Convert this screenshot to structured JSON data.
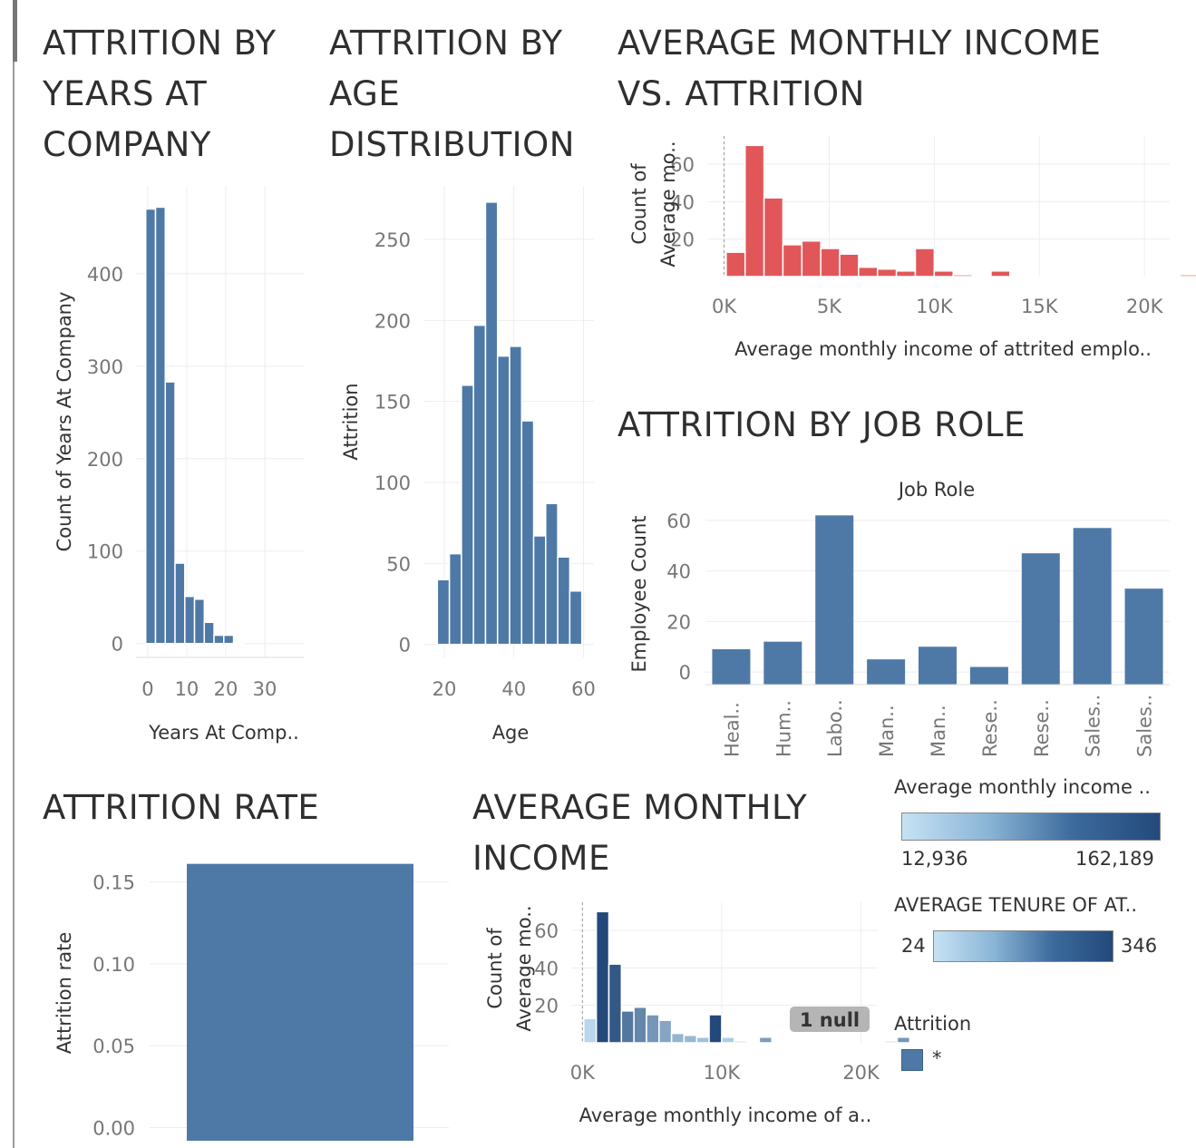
{
  "titles": {
    "years": [
      "ATTRITION BY",
      "YEARS AT",
      "COMPANY"
    ],
    "age": [
      "ATTRITION BY",
      "AGE",
      "DISTRIBUTION"
    ],
    "income_vs_attrition": [
      "AVERAGE MONTHLY INCOME",
      "VS. ATTRITION"
    ],
    "job_role": [
      "ATTRITION BY JOB ROLE"
    ],
    "rate": [
      "ATTRITION RATE"
    ],
    "avg_income": [
      "AVERAGE MONTHLY",
      "INCOME"
    ]
  },
  "legends": {
    "income": {
      "title": "Average monthly income ..",
      "min": "12,936",
      "max": "162,189"
    },
    "tenure": {
      "title": "AVERAGE TENURE OF AT..",
      "min": "24",
      "max": "346"
    },
    "attrition": {
      "title": "Attrition",
      "item": "*",
      "color": "#4e79a7"
    }
  },
  "colors": {
    "blue": "#4e79a7",
    "red": "#e15759",
    "grid": "#eeeeee"
  },
  "chart_data": [
    {
      "id": "years",
      "type": "bar",
      "title": "ATTRITION BY YEARS AT COMPANY",
      "xlabel": "Years At Comp..",
      "ylabel": "Count of Years At Company",
      "bin_width": 2.5,
      "x_start": -0.5,
      "values": [
        470,
        472,
        283,
        87,
        51,
        48,
        23,
        9,
        9,
        1
      ],
      "xticks": [
        0,
        10,
        20,
        30
      ],
      "xtick_labels": [
        "0",
        "10",
        "20",
        "30"
      ],
      "yticks": [
        0,
        100,
        200,
        300,
        400
      ],
      "ytick_labels": [
        "0",
        "100",
        "200",
        "300",
        "400"
      ],
      "ylim": [
        -15,
        495
      ],
      "xlim": [
        -3,
        40
      ]
    },
    {
      "id": "age",
      "type": "bar",
      "title": "ATTRITION BY AGE DISTRIBUTION",
      "xlabel": "Age",
      "ylabel": "Attrition",
      "bin_width": 3.46,
      "x_start": 18,
      "values": [
        40,
        56,
        160,
        197,
        273,
        178,
        184,
        138,
        67,
        87,
        54,
        33
      ],
      "xticks": [
        20,
        40,
        60
      ],
      "xtick_labels": [
        "20",
        "40",
        "60"
      ],
      "yticks": [
        0,
        50,
        100,
        150,
        200,
        250
      ],
      "ytick_labels": [
        "0",
        "50",
        "100",
        "150",
        "200",
        "250"
      ],
      "ylim": [
        -8,
        283
      ],
      "xlim": [
        14,
        63
      ]
    },
    {
      "id": "income_vs_attrition",
      "type": "bar",
      "title": "AVERAGE MONTHLY INCOME VS. ATTRITION",
      "xlabel": "Average monthly income of attrited emplo..",
      "ylabel": "Count of Average mo..",
      "color": "#e15759",
      "bin_width": 900,
      "x_start": 100,
      "values": [
        13,
        70,
        42,
        17,
        19,
        15,
        12,
        5,
        4,
        3,
        15,
        3,
        1,
        0,
        3,
        0,
        0,
        0,
        0,
        0,
        0,
        0,
        0,
        0,
        1,
        3
      ],
      "xticks": [
        0,
        5000,
        10000,
        15000,
        20000
      ],
      "xtick_labels": [
        "0K",
        "5K",
        "10K",
        "15K",
        "20K"
      ],
      "yticks": [
        20,
        40,
        60
      ],
      "ytick_labels": [
        "20",
        "40",
        "60"
      ],
      "ylim": [
        0,
        75
      ],
      "xlim": [
        -800,
        21200
      ]
    },
    {
      "id": "job_role",
      "type": "bar",
      "title": "ATTRITION BY JOB ROLE",
      "header": "Job Role",
      "ylabel": "Employee Count",
      "categories": [
        "Heal..",
        "Hum..",
        "Labo..",
        "Man..",
        "Man..",
        "Rese..",
        "Rese..",
        "Sales..",
        "Sales.."
      ],
      "values": [
        9,
        12,
        62,
        5,
        10,
        2,
        47,
        57,
        33
      ],
      "yticks": [
        0,
        20,
        40,
        60
      ],
      "ytick_labels": [
        "0",
        "20",
        "40",
        "60"
      ],
      "ylim": [
        -5,
        65
      ]
    },
    {
      "id": "rate",
      "type": "bar",
      "title": "ATTRITION RATE",
      "ylabel": "Attrition rate",
      "values": [
        0.161
      ],
      "yticks": [
        0.0,
        0.05,
        0.1,
        0.15
      ],
      "ytick_labels": [
        "0.00",
        "0.05",
        "0.10",
        "0.15"
      ],
      "ylim": [
        -0.008,
        0.168
      ]
    },
    {
      "id": "avg_income",
      "type": "bar",
      "title": "AVERAGE MONTHLY INCOME",
      "xlabel": "Average monthly income of a..",
      "ylabel": "Count of Average mo..",
      "null_label": "1 null",
      "bin_width": 900,
      "x_start": 100,
      "values": [
        13,
        70,
        42,
        17,
        19,
        15,
        12,
        5,
        4,
        3,
        15,
        3,
        1,
        0,
        3,
        0,
        0,
        0,
        0,
        0,
        0,
        0,
        0,
        0,
        1,
        3
      ],
      "shade": [
        0.08,
        1,
        0.9,
        0.7,
        0.6,
        0.5,
        0.4,
        0.3,
        0.28,
        0.22,
        1,
        0.15,
        0.1,
        0,
        0.45,
        0,
        0,
        0,
        0,
        0,
        0,
        0,
        0,
        0,
        0.1,
        0.5
      ],
      "xticks": [
        0,
        10000,
        20000
      ],
      "xtick_labels": [
        "0K",
        "10K",
        "20K"
      ],
      "yticks": [
        20,
        40,
        60
      ],
      "ytick_labels": [
        "20",
        "40",
        "60"
      ],
      "ylim": [
        0,
        75
      ],
      "xlim": [
        -800,
        21200
      ]
    }
  ]
}
